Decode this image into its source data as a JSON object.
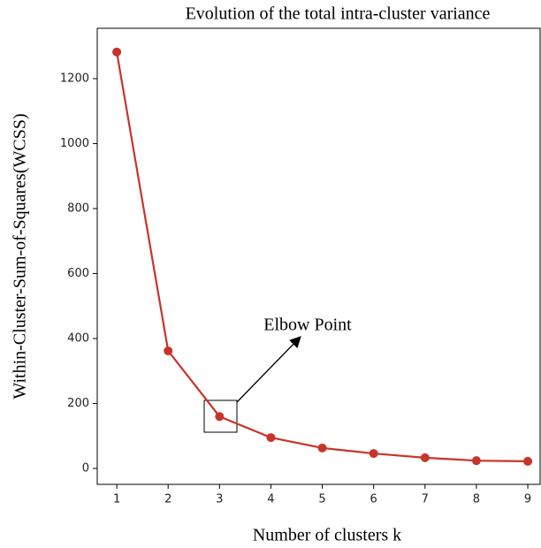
{
  "chart_data": {
    "type": "line",
    "title": "Evolution of the total intra-cluster variance",
    "xlabel": "Number of clusters k",
    "ylabel": "Within-Cluster-Sum-of-Squares(WCSS)",
    "annotation": "Elbow Point",
    "x": [
      1,
      2,
      3,
      4,
      5,
      6,
      7,
      8,
      9
    ],
    "series": [
      {
        "name": "WCSS",
        "color": "#c8342a",
        "values": [
          1282,
          362,
          160,
          95,
          63,
          46,
          33,
          24,
          22
        ]
      }
    ],
    "xlim": [
      0.62,
      9.24
    ],
    "xticks": [
      1,
      2,
      3,
      4,
      5,
      6,
      7,
      8,
      9
    ],
    "ylim": [
      -49,
      1355
    ],
    "yticks": [
      0,
      200,
      400,
      600,
      800,
      1000,
      1200
    ],
    "grid": false
  }
}
